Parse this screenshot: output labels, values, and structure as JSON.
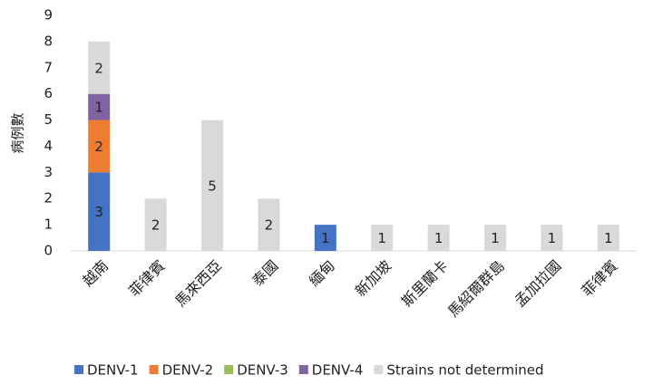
{
  "chart_data": {
    "type": "stacked_bar",
    "y_label": "病例數",
    "categories": [
      "越南",
      "菲律賓",
      "馬來西亞",
      "泰國",
      "緬甸",
      "新加坡",
      "斯里蘭卡",
      "馬紹爾群島",
      "孟加拉國",
      "菲律賓"
    ],
    "series": [
      {
        "name": "DENV-1",
        "color": "#4472c4",
        "values": [
          3,
          0,
          0,
          0,
          1,
          0,
          0,
          0,
          0,
          0
        ]
      },
      {
        "name": "DENV-2",
        "color": "#ed7d31",
        "values": [
          2,
          0,
          0,
          0,
          0,
          0,
          0,
          0,
          0,
          0
        ]
      },
      {
        "name": "DENV-3",
        "color": "#9bbb59",
        "values": [
          0,
          0,
          0,
          0,
          0,
          0,
          0,
          0,
          0,
          0
        ]
      },
      {
        "name": "DENV-4",
        "color": "#8064a2",
        "values": [
          1,
          0,
          0,
          0,
          0,
          0,
          0,
          0,
          0,
          0
        ]
      },
      {
        "name": "Strains not determined",
        "color": "#d9d9d9",
        "values": [
          2,
          2,
          5,
          2,
          0,
          1,
          1,
          1,
          1,
          1
        ]
      }
    ],
    "ylim": [
      0,
      9
    ],
    "yticks": [
      0,
      1,
      2,
      3,
      4,
      5,
      6,
      7,
      8,
      9
    ],
    "grid": false,
    "legend": "bottom"
  }
}
